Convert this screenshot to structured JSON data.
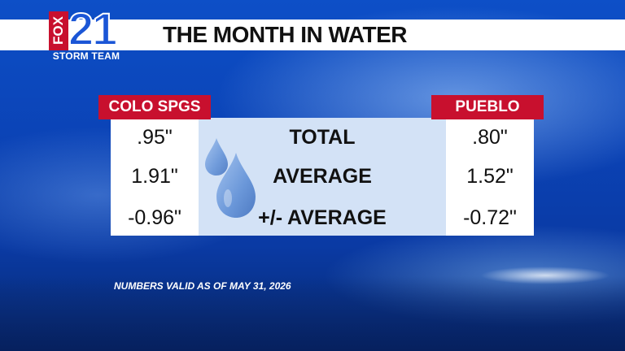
{
  "header": {
    "title": "THE MONTH IN WATER"
  },
  "logo": {
    "network": "FOX",
    "channel": "21",
    "team": "STORM TEAM"
  },
  "table": {
    "left_city": "COLO SPGS",
    "right_city": "PUEBLO",
    "rows": [
      {
        "label": "TOTAL",
        "left": ".95\"",
        "right": ".80\""
      },
      {
        "label": "AVERAGE",
        "left": "1.91\"",
        "right": "1.52\""
      },
      {
        "label": "+/- AVERAGE",
        "left": "-0.96\"",
        "right": "-0.72\""
      }
    ]
  },
  "footer": {
    "note": "NUMBERS VALID AS OF MAY 31, 2026"
  },
  "colors": {
    "accent_red": "#c8102e",
    "brand_blue": "#1b56d6",
    "panel_blue": "#d3e2f6"
  },
  "icons": {
    "decoration": "water-drops-icon"
  }
}
